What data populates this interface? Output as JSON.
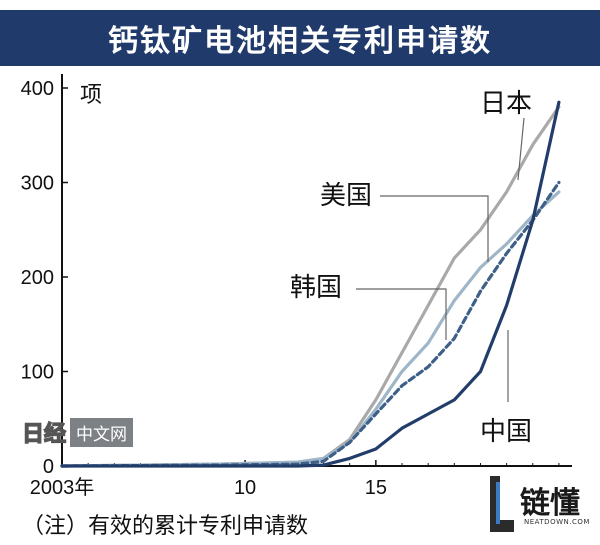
{
  "header": {
    "title": "钙钛矿电池相关专利申请数"
  },
  "footer": {
    "note": "（注）有效的累计专利申请数"
  },
  "watermark": {
    "logo_text": "日经",
    "site_text": "中文网"
  },
  "badge": {
    "text": "链懂",
    "url": "NEATDOWN.COM"
  },
  "colors": {
    "title_bg": "#1f3a6b",
    "japan": "#a9a9a9",
    "us": "#9fb6c8",
    "korea": "#3e5f88",
    "china": "#233d6a"
  },
  "chart_data": {
    "type": "line",
    "unit_label": "项",
    "x_ticks": [
      {
        "value": 2003,
        "label": "2003年"
      },
      {
        "value": 2010,
        "label": "10"
      },
      {
        "value": 2015,
        "label": "15"
      }
    ],
    "y_ticks": [
      0,
      100,
      200,
      300,
      400
    ],
    "xlim": [
      2003,
      2022.5
    ],
    "ylim": [
      0,
      400
    ],
    "grid": false,
    "series": [
      {
        "name": "日本",
        "color": "#a9a9a9",
        "dash": false,
        "points": [
          [
            2003,
            0
          ],
          [
            2006,
            1
          ],
          [
            2009,
            2
          ],
          [
            2012,
            4
          ],
          [
            2013,
            8
          ],
          [
            2014,
            28
          ],
          [
            2015,
            70
          ],
          [
            2016,
            120
          ],
          [
            2017,
            170
          ],
          [
            2018,
            220
          ],
          [
            2019,
            250
          ],
          [
            2020,
            290
          ],
          [
            2021,
            340
          ],
          [
            2022,
            380
          ]
        ]
      },
      {
        "name": "美国",
        "color": "#9fb6c8",
        "dash": false,
        "points": [
          [
            2003,
            0
          ],
          [
            2006,
            1
          ],
          [
            2009,
            2
          ],
          [
            2012,
            4
          ],
          [
            2013,
            8
          ],
          [
            2014,
            25
          ],
          [
            2015,
            60
          ],
          [
            2016,
            100
          ],
          [
            2017,
            130
          ],
          [
            2018,
            175
          ],
          [
            2019,
            210
          ],
          [
            2020,
            235
          ],
          [
            2021,
            265
          ],
          [
            2022,
            290
          ]
        ]
      },
      {
        "name": "韩国",
        "color": "#3e5f88",
        "dash": true,
        "points": [
          [
            2003,
            0
          ],
          [
            2009,
            1
          ],
          [
            2012,
            2
          ],
          [
            2013,
            5
          ],
          [
            2014,
            25
          ],
          [
            2015,
            55
          ],
          [
            2016,
            85
          ],
          [
            2017,
            105
          ],
          [
            2018,
            135
          ],
          [
            2019,
            185
          ],
          [
            2020,
            225
          ],
          [
            2021,
            260
          ],
          [
            2022,
            300
          ]
        ]
      },
      {
        "name": "中国",
        "color": "#233d6a",
        "dash": false,
        "points": [
          [
            2003,
            0
          ],
          [
            2012,
            0
          ],
          [
            2013,
            1
          ],
          [
            2014,
            8
          ],
          [
            2015,
            18
          ],
          [
            2016,
            40
          ],
          [
            2017,
            55
          ],
          [
            2018,
            70
          ],
          [
            2019,
            100
          ],
          [
            2020,
            170
          ],
          [
            2021,
            260
          ],
          [
            2022,
            385
          ]
        ]
      }
    ],
    "labels": [
      {
        "series": "日本",
        "text": "日本"
      },
      {
        "series": "美国",
        "text": "美国"
      },
      {
        "series": "韩国",
        "text": "韩国"
      },
      {
        "series": "中国",
        "text": "中国"
      }
    ]
  }
}
